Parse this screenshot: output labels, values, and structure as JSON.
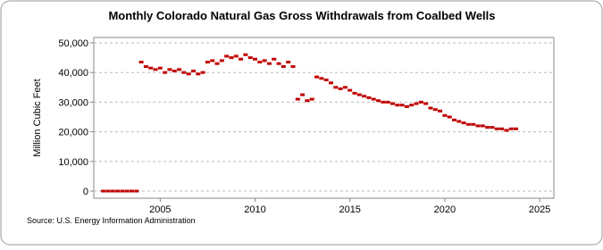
{
  "chart_data": {
    "type": "scatter",
    "title": "Monthly Colorado Natural Gas Gross Withdrawals from Coalbed Wells",
    "y_label": "Million Cubic Feet",
    "source": "Source: U.S. Energy Information Administration",
    "color": "#c00000",
    "grid": true,
    "xlim": [
      2001.5,
      2025.75
    ],
    "ylim": [
      -2400,
      51800
    ],
    "xticks": [
      2005,
      2010,
      2015,
      2020,
      2025
    ],
    "yticks": [
      0,
      {
        "value": 10000,
        "label": "10,000"
      },
      {
        "value": 20000,
        "label": "20,000"
      },
      {
        "value": 30000,
        "label": "30,000"
      },
      {
        "value": 40000,
        "label": "40,000"
      },
      {
        "value": 50000,
        "label": "50,000"
      }
    ],
    "x": [
      2002.0,
      2002.25,
      2002.5,
      2002.75,
      2003.0,
      2003.25,
      2003.5,
      2003.75,
      2004.0,
      2004.25,
      2004.5,
      2004.75,
      2005.0,
      2005.25,
      2005.5,
      2005.75,
      2006.0,
      2006.25,
      2006.5,
      2006.75,
      2007.0,
      2007.25,
      2007.5,
      2007.75,
      2008.0,
      2008.25,
      2008.5,
      2008.75,
      2009.0,
      2009.25,
      2009.5,
      2009.75,
      2010.0,
      2010.25,
      2010.5,
      2010.75,
      2011.0,
      2011.25,
      2011.5,
      2011.75,
      2012.0,
      2012.25,
      2012.5,
      2012.75,
      2013.0,
      2013.25,
      2013.5,
      2013.75,
      2014.0,
      2014.25,
      2014.5,
      2014.75,
      2015.0,
      2015.25,
      2015.5,
      2015.75,
      2016.0,
      2016.25,
      2016.5,
      2016.75,
      2017.0,
      2017.25,
      2017.5,
      2017.75,
      2018.0,
      2018.25,
      2018.5,
      2018.75,
      2019.0,
      2019.25,
      2019.5,
      2019.75,
      2020.0,
      2020.25,
      2020.5,
      2020.75,
      2021.0,
      2021.25,
      2021.5,
      2021.75,
      2022.0,
      2022.25,
      2022.5,
      2022.75,
      2023.0,
      2023.25,
      2023.5,
      2023.75
    ],
    "values": [
      0,
      0,
      0,
      0,
      0,
      0,
      0,
      0,
      43500,
      42000,
      41500,
      41000,
      41500,
      40000,
      41000,
      40500,
      41000,
      40000,
      39500,
      40500,
      39500,
      40000,
      43500,
      44000,
      43000,
      44000,
      45500,
      45000,
      45500,
      44500,
      46000,
      45000,
      44500,
      43500,
      44000,
      43000,
      44500,
      43000,
      42000,
      43500,
      42000,
      31000,
      32500,
      30500,
      31000,
      38500,
      38000,
      37500,
      36500,
      35000,
      34500,
      35000,
      34000,
      33000,
      32500,
      32000,
      31500,
      31000,
      30500,
      30000,
      30000,
      29500,
      29000,
      29000,
      28500,
      29000,
      29500,
      30000,
      29500,
      28000,
      27500,
      27000,
      25500,
      25000,
      24000,
      23500,
      23000,
      22500,
      22500,
      22000,
      22000,
      21500,
      21500,
      21000,
      21000,
      20500,
      21000,
      21000
    ]
  }
}
